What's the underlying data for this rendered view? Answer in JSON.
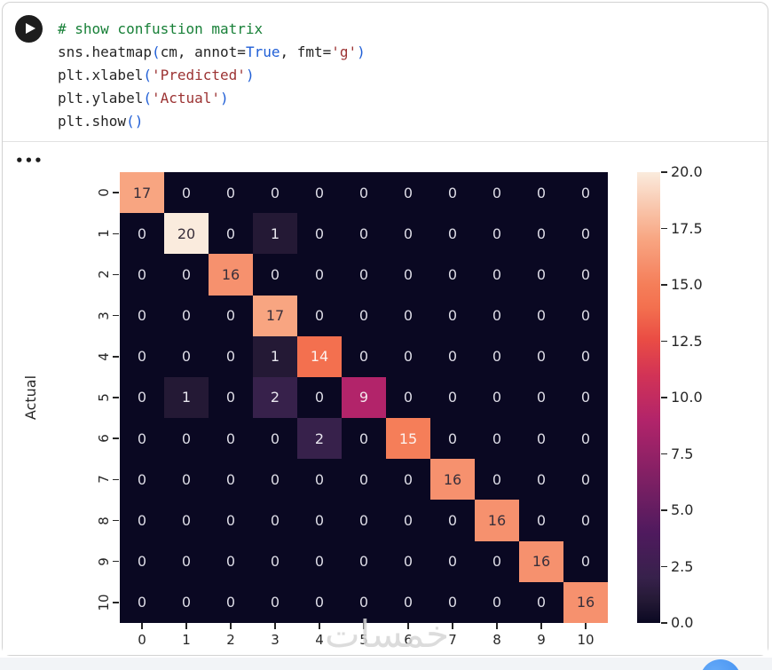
{
  "code_cell": {
    "run_button_icon": "play-icon",
    "token_colors": {
      "comment": "#188038",
      "plain": "#252525",
      "keyword": "#1f5ed6",
      "bracket": "#1f5ed6",
      "string": "#9c3333"
    },
    "lines": [
      [
        {
          "t": "# show confustion matrix",
          "c": "comment"
        }
      ],
      [
        {
          "t": "sns.heatmap",
          "c": "plain"
        },
        {
          "t": "(",
          "c": "bracket"
        },
        {
          "t": "cm, annot=",
          "c": "plain"
        },
        {
          "t": "True",
          "c": "keyword"
        },
        {
          "t": ", fmt=",
          "c": "plain"
        },
        {
          "t": "'g'",
          "c": "string"
        },
        {
          "t": ")",
          "c": "bracket"
        }
      ],
      [
        {
          "t": "plt.xlabel",
          "c": "plain"
        },
        {
          "t": "(",
          "c": "bracket"
        },
        {
          "t": "'Predicted'",
          "c": "string"
        },
        {
          "t": ")",
          "c": "bracket"
        }
      ],
      [
        {
          "t": "plt.ylabel",
          "c": "plain"
        },
        {
          "t": "(",
          "c": "bracket"
        },
        {
          "t": "'Actual'",
          "c": "string"
        },
        {
          "t": ")",
          "c": "bracket"
        }
      ],
      [
        {
          "t": "plt.show",
          "c": "plain"
        },
        {
          "t": "()",
          "c": "bracket"
        }
      ]
    ]
  },
  "output": {
    "collapse_indicator": "•••"
  },
  "chart_data": {
    "type": "heatmap",
    "colormap": "rocket",
    "ylabel": "Actual",
    "x_tick_labels": [
      "0",
      "1",
      "2",
      "3",
      "4",
      "5",
      "6",
      "7",
      "8",
      "9",
      "10"
    ],
    "y_tick_labels": [
      "0",
      "1",
      "2",
      "3",
      "4",
      "5",
      "6",
      "7",
      "8",
      "9",
      "10"
    ],
    "matrix": [
      [
        17,
        0,
        0,
        0,
        0,
        0,
        0,
        0,
        0,
        0,
        0
      ],
      [
        0,
        20,
        0,
        1,
        0,
        0,
        0,
        0,
        0,
        0,
        0
      ],
      [
        0,
        0,
        16,
        0,
        0,
        0,
        0,
        0,
        0,
        0,
        0
      ],
      [
        0,
        0,
        0,
        17,
        0,
        0,
        0,
        0,
        0,
        0,
        0
      ],
      [
        0,
        0,
        0,
        1,
        14,
        0,
        0,
        0,
        0,
        0,
        0
      ],
      [
        0,
        1,
        0,
        2,
        0,
        9,
        0,
        0,
        0,
        0,
        0
      ],
      [
        0,
        0,
        0,
        0,
        2,
        0,
        15,
        0,
        0,
        0,
        0
      ],
      [
        0,
        0,
        0,
        0,
        0,
        0,
        0,
        16,
        0,
        0,
        0
      ],
      [
        0,
        0,
        0,
        0,
        0,
        0,
        0,
        0,
        16,
        0,
        0
      ],
      [
        0,
        0,
        0,
        0,
        0,
        0,
        0,
        0,
        0,
        16,
        0
      ],
      [
        0,
        0,
        0,
        0,
        0,
        0,
        0,
        0,
        0,
        0,
        16
      ]
    ],
    "value_styles": {
      "0": {
        "bg": "#0a0822",
        "fg": "#dddce6"
      },
      "1": {
        "bg": "#241935",
        "fg": "#e8e6ee"
      },
      "2": {
        "bg": "#37214b",
        "fg": "#e8e6ee"
      },
      "9": {
        "bg": "#b2246a",
        "fg": "#f4e6ed"
      },
      "14": {
        "bg": "#f3704f",
        "fg": "#fdf2ee"
      },
      "15": {
        "bg": "#f57e59",
        "fg": "#fdf2ee"
      },
      "16": {
        "bg": "#f6916e",
        "fg": "#39303b"
      },
      "17": {
        "bg": "#f8a581",
        "fg": "#39303b"
      },
      "20": {
        "bg": "#faebdd",
        "fg": "#39303b"
      }
    },
    "colorbar": {
      "range": [
        0.0,
        20.0
      ],
      "tick_labels_top_to_bottom": [
        "20.0",
        "17.5",
        "15.0",
        "12.5",
        "10.0",
        "7.5",
        "5.0",
        "2.5",
        "0.0"
      ],
      "gradient_bottom_to_top": [
        {
          "pos": 0.0,
          "color": "#0a0822"
        },
        {
          "pos": 0.05,
          "color": "#241935"
        },
        {
          "pos": 0.1,
          "color": "#37214b"
        },
        {
          "pos": 0.2,
          "color": "#4f1a5e"
        },
        {
          "pos": 0.3,
          "color": "#771f63"
        },
        {
          "pos": 0.45,
          "color": "#b2246a"
        },
        {
          "pos": 0.55,
          "color": "#d23356"
        },
        {
          "pos": 0.63,
          "color": "#ea4d44"
        },
        {
          "pos": 0.7,
          "color": "#f3704f"
        },
        {
          "pos": 0.75,
          "color": "#f57e59"
        },
        {
          "pos": 0.8,
          "color": "#f6916e"
        },
        {
          "pos": 0.85,
          "color": "#f8a581"
        },
        {
          "pos": 0.92,
          "color": "#f9c5ab"
        },
        {
          "pos": 1.0,
          "color": "#faebdd"
        }
      ]
    }
  },
  "watermark": {
    "text": "خمسات",
    "color": "#d7d7d7"
  },
  "page": {
    "bottom_strip_color": "#f2f4f7",
    "fab_color": "#4695f2"
  }
}
